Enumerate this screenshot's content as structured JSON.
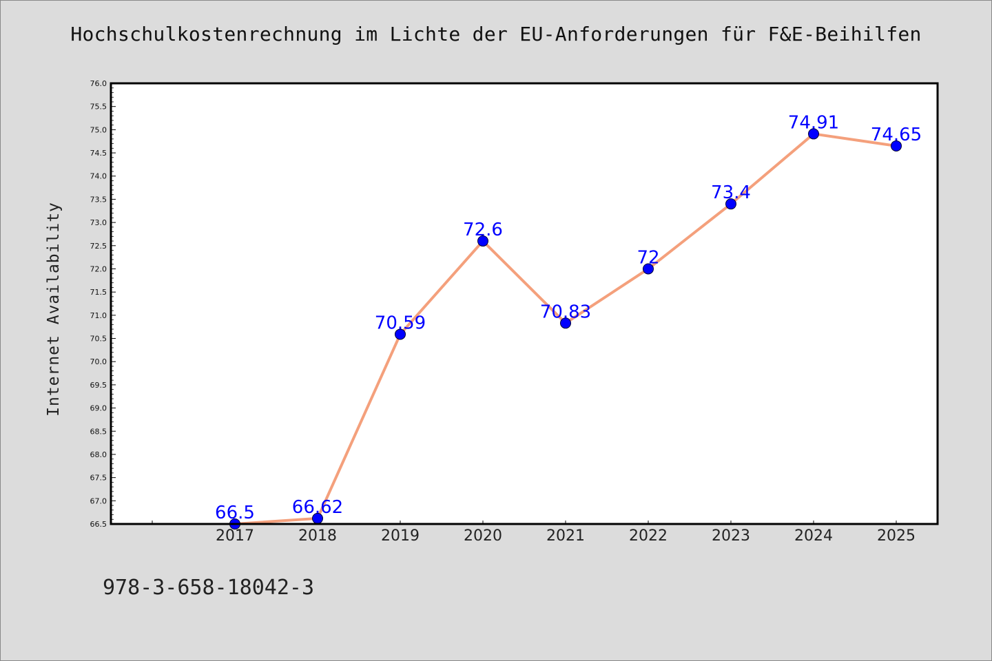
{
  "chart_data": {
    "type": "line",
    "title": "Hochschulkostenrechnung im Lichte der EU-Anforderungen für F&E-Beihilfen",
    "xlabel": "",
    "ylabel": "Internet Availability",
    "categories": [
      "2017",
      "2018",
      "2019",
      "2020",
      "2021",
      "2022",
      "2023",
      "2024",
      "2025"
    ],
    "values": [
      66.5,
      66.62,
      70.59,
      72.6,
      70.83,
      72.0,
      73.4,
      74.91,
      74.65
    ],
    "data_labels": [
      "66.5",
      "66.62",
      "70.59",
      "72.6",
      "70.83",
      "72",
      "73.4",
      "74.91",
      "74.65"
    ],
    "ylim": [
      66.5,
      76.0
    ],
    "yticks": [
      "66.5",
      "67.0",
      "67.5",
      "68.0",
      "68.5",
      "69.0",
      "69.5",
      "70.0",
      "70.5",
      "71.0",
      "71.5",
      "72.0",
      "72.5",
      "73.0",
      "73.5",
      "74.0",
      "74.5",
      "75.0",
      "75.5",
      "76.0"
    ],
    "grid": false,
    "legend": "none",
    "colors": {
      "line": "#f4a07c",
      "marker": "#0000ff",
      "data_label": "#0000ff",
      "figure_background": "#dcdcdc",
      "plot_background": "#ffffff"
    }
  },
  "footnote": "978-3-658-18042-3"
}
